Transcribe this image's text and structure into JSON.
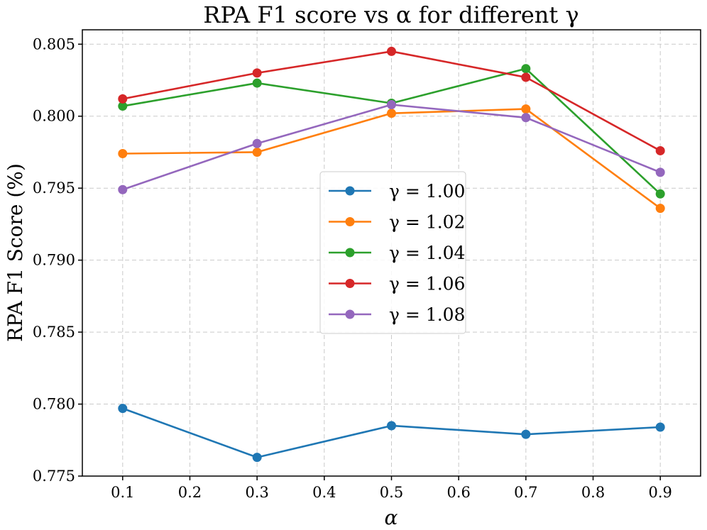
{
  "chart_data": {
    "type": "line",
    "title": "RPA F1 score vs α for different γ",
    "xlabel": "α",
    "ylabel": "RPA F1 Score (%)",
    "x": [
      0.1,
      0.3,
      0.5,
      0.7,
      0.9
    ],
    "xlim": [
      0.04,
      0.96
    ],
    "ylim": [
      0.775,
      0.806
    ],
    "xticks": [
      "0.1",
      "0.2",
      "0.3",
      "0.4",
      "0.5",
      "0.6",
      "0.7",
      "0.8",
      "0.9"
    ],
    "xtick_values": [
      0.1,
      0.2,
      0.3,
      0.4,
      0.5,
      0.6,
      0.7,
      0.8,
      0.9
    ],
    "yticks": [
      "0.775",
      "0.780",
      "0.785",
      "0.790",
      "0.795",
      "0.800",
      "0.805"
    ],
    "ytick_values": [
      0.775,
      0.78,
      0.785,
      0.79,
      0.795,
      0.8,
      0.805
    ],
    "grid": true,
    "legend_position": "center",
    "series": [
      {
        "name": "γ = 1.00",
        "color": "#1f77b4",
        "values": [
          0.7797,
          0.7763,
          0.7785,
          0.7779,
          0.7784
        ]
      },
      {
        "name": "γ = 1.02",
        "color": "#ff7f0e",
        "values": [
          0.7974,
          0.7975,
          0.8002,
          0.8005,
          0.7936
        ]
      },
      {
        "name": "γ = 1.04",
        "color": "#2ca02c",
        "values": [
          0.8007,
          0.8023,
          0.8009,
          0.8033,
          0.7946
        ]
      },
      {
        "name": "γ = 1.06",
        "color": "#d62728",
        "values": [
          0.8012,
          0.803,
          0.8045,
          0.8027,
          0.7976
        ]
      },
      {
        "name": "γ = 1.08",
        "color": "#9467bd",
        "values": [
          0.7949,
          0.7981,
          0.8008,
          0.7999,
          0.7961
        ]
      }
    ]
  }
}
